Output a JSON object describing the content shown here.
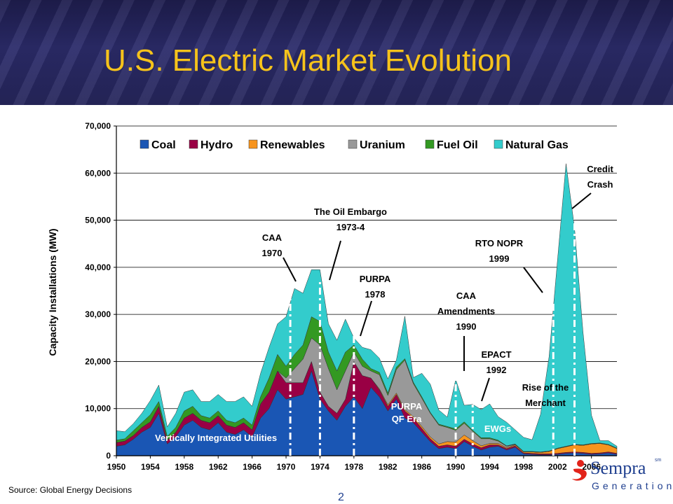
{
  "page": {
    "title": "U.S. Electric Market Evolution",
    "source": "Source:  Global Energy Decisions",
    "page_number": "2",
    "logo_name": "Sempra",
    "logo_tm": "sm",
    "logo_sub": "Generation"
  },
  "chart_data": {
    "type": "area",
    "stacked": true,
    "ylabel": "Capacity Installations (MW)",
    "ylim": [
      0,
      70000
    ],
    "yticks": [
      0,
      10000,
      20000,
      30000,
      40000,
      50000,
      60000,
      70000
    ],
    "ytick_labels": [
      "0",
      "10,000",
      "20,000",
      "30,000",
      "40,000",
      "50,000",
      "60,000",
      "70,000"
    ],
    "xlim": [
      1950,
      2009
    ],
    "xticks": [
      1950,
      1954,
      1958,
      1962,
      1966,
      1970,
      1974,
      1978,
      1982,
      1986,
      1990,
      1994,
      1998,
      2002,
      2006
    ],
    "xtick_labels": [
      "1950",
      "1954",
      "1958",
      "1962",
      "1966",
      "1970",
      "1974",
      "1978",
      "1982",
      "1986",
      "1990",
      "1994",
      "1998",
      "2002",
      "2006"
    ],
    "grid": "horizontal",
    "legend_position": "top",
    "x": [
      1950,
      1951,
      1952,
      1953,
      1954,
      1955,
      1956,
      1957,
      1958,
      1959,
      1960,
      1961,
      1962,
      1963,
      1964,
      1965,
      1966,
      1967,
      1968,
      1969,
      1970,
      1971,
      1972,
      1973,
      1974,
      1975,
      1976,
      1977,
      1978,
      1979,
      1980,
      1981,
      1982,
      1983,
      1984,
      1985,
      1986,
      1987,
      1988,
      1989,
      1990,
      1991,
      1992,
      1993,
      1994,
      1995,
      1996,
      1997,
      1998,
      1999,
      2000,
      2001,
      2002,
      2003,
      2004,
      2005,
      2006,
      2007,
      2008,
      2009
    ],
    "series": [
      {
        "name": "Coal",
        "color": "#1a56b4",
        "values": [
          2000,
          2300,
          3500,
          5000,
          6000,
          9000,
          2500,
          4000,
          6500,
          7500,
          6000,
          5500,
          7000,
          5000,
          4500,
          5500,
          4000,
          8000,
          10000,
          14000,
          12000,
          12500,
          13000,
          18000,
          12000,
          9500,
          7500,
          10500,
          12500,
          10000,
          14500,
          12500,
          9500,
          12000,
          8000,
          7000,
          5000,
          3000,
          1500,
          1800,
          1500,
          3000,
          2000,
          1200,
          1800,
          2000,
          1200,
          1800,
          400,
          300,
          200,
          200,
          300,
          500,
          600,
          500,
          300,
          400,
          600,
          300
        ]
      },
      {
        "name": "Hydro",
        "color": "#990044",
        "values": [
          800,
          800,
          800,
          1000,
          1200,
          1500,
          800,
          1000,
          1500,
          1500,
          1500,
          1500,
          1500,
          1500,
          1500,
          1500,
          1500,
          3000,
          3500,
          4000,
          3500,
          3000,
          2500,
          2000,
          1500,
          1000,
          1500,
          1500,
          7500,
          7000,
          2000,
          1500,
          1000,
          1000,
          1500,
          1000,
          800,
          600,
          500,
          500,
          500,
          500,
          500,
          500,
          500,
          300,
          300,
          300,
          200,
          200,
          200,
          200,
          200,
          200,
          200,
          200,
          200,
          200,
          200,
          200
        ]
      },
      {
        "name": "Renewables",
        "color": "#f7941d",
        "values": [
          0,
          0,
          0,
          0,
          0,
          0,
          0,
          0,
          0,
          0,
          0,
          0,
          0,
          0,
          0,
          0,
          0,
          0,
          0,
          0,
          0,
          0,
          0,
          0,
          0,
          0,
          0,
          0,
          0,
          0,
          0,
          200,
          300,
          300,
          300,
          300,
          400,
          400,
          500,
          700,
          900,
          900,
          700,
          400,
          300,
          300,
          200,
          200,
          200,
          300,
          300,
          500,
          1000,
          1200,
          1500,
          1500,
          2000,
          2000,
          1500,
          1000
        ]
      },
      {
        "name": "Uranium",
        "color": "#999999",
        "values": [
          0,
          0,
          0,
          0,
          0,
          0,
          0,
          0,
          0,
          0,
          0,
          0,
          0,
          0,
          0,
          0,
          0,
          0,
          0,
          0,
          1000,
          3000,
          5000,
          5000,
          10000,
          8000,
          5000,
          6000,
          2000,
          2000,
          1500,
          3000,
          2000,
          5000,
          10500,
          7000,
          6000,
          5000,
          4000,
          3000,
          2500,
          2500,
          2000,
          1500,
          1000,
          500,
          300,
          100,
          0,
          0,
          0,
          0,
          0,
          0,
          0,
          0,
          0,
          0,
          0,
          0
        ]
      },
      {
        "name": "Fuel Oil",
        "color": "#339922",
        "values": [
          500,
          500,
          1000,
          1000,
          1500,
          1000,
          800,
          1000,
          1500,
          1500,
          1000,
          1000,
          1000,
          1000,
          1000,
          1000,
          1000,
          1500,
          3000,
          3500,
          2500,
          3000,
          3000,
          4500,
          5000,
          3500,
          4000,
          4000,
          1500,
          1500,
          500,
          500,
          500,
          500,
          300,
          300,
          300,
          200,
          200,
          200,
          300,
          300,
          200,
          200,
          200,
          200,
          100,
          100,
          100,
          100,
          100,
          100,
          100,
          100,
          100,
          100,
          100,
          100,
          100,
          100
        ]
      },
      {
        "name": "Natural Gas",
        "color": "#33cccc",
        "values": [
          2000,
          1500,
          1500,
          2000,
          3000,
          3500,
          2000,
          3000,
          4000,
          3500,
          3000,
          3500,
          3500,
          4000,
          4500,
          4500,
          4000,
          5000,
          6500,
          6500,
          10500,
          14000,
          11000,
          10000,
          11000,
          6000,
          6500,
          7000,
          1500,
          2500,
          4000,
          3000,
          3000,
          1500,
          9000,
          1000,
          5000,
          6000,
          3000,
          2000,
          10500,
          3500,
          5500,
          6000,
          7200,
          5000,
          5000,
          3000,
          3000,
          2500,
          8000,
          20000,
          40000,
          60000,
          46000,
          24000,
          6000,
          500,
          800,
          400
        ]
      }
    ],
    "annotations": [
      {
        "text": [
          "CAA",
          "1970"
        ]
      },
      {
        "text": [
          "The Oil Embargo",
          "1973-4"
        ]
      },
      {
        "text": [
          "PURPA",
          "1978"
        ]
      },
      {
        "text": [
          "CAA",
          "Amendments",
          "1990"
        ]
      },
      {
        "text": [
          "RTO NOPR",
          "1999"
        ]
      },
      {
        "text": [
          "Credit",
          "Crash"
        ]
      },
      {
        "text": [
          "EPACT",
          "1992"
        ]
      },
      {
        "text": [
          "Rise of the",
          "Merchant"
        ]
      }
    ],
    "region_labels": [
      {
        "text": [
          "Vertically Integrated Utilities"
        ]
      },
      {
        "text": [
          "PURPA",
          "QF Era"
        ]
      },
      {
        "text": [
          "EWGs"
        ]
      }
    ],
    "markers": [
      1970.5,
      1974,
      1978,
      1990,
      1992,
      2001.5,
      2004
    ]
  }
}
